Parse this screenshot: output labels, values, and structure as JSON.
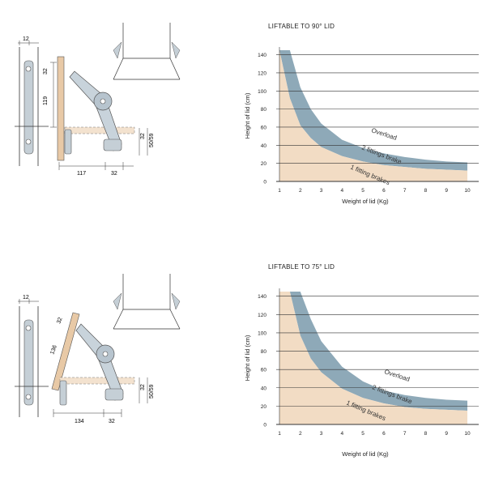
{
  "panels": [
    {
      "title": "LIFTABLE TO 90° LID",
      "dims": {
        "top_width": "12",
        "arm_top": "32",
        "height": "119",
        "bottom_left": "117",
        "bottom_right": "32",
        "right_a": "32",
        "right_b": "50/59"
      }
    },
    {
      "title": "LIFTABLE TO 75° LID",
      "dims": {
        "top_width": "12",
        "arm_top": "32",
        "height": "136",
        "bottom_left": "134",
        "bottom_right": "32",
        "right_a": "32",
        "right_b": "50/59"
      }
    }
  ],
  "colors": {
    "overload": "#8ea9b8",
    "brake": "#f2dcc4",
    "grid": "#333333",
    "hinge": "#a9b8c3"
  },
  "chart_data": [
    {
      "type": "area",
      "xlabel": "Weight of lid (Kg)",
      "ylabel": "Height of lid (cm)",
      "xlim": [
        1,
        10
      ],
      "ylim": [
        0,
        145
      ],
      "x_ticks": [
        1,
        2,
        3,
        4,
        5,
        6,
        7,
        8,
        9,
        10
      ],
      "y_ticks": [
        0,
        20,
        40,
        60,
        80,
        100,
        120,
        140
      ],
      "grid": "horizontal",
      "x": [
        1,
        1.5,
        2,
        2.5,
        3,
        4,
        5,
        6,
        7,
        8,
        9,
        10
      ],
      "series": [
        {
          "name": "1 fitting brakes",
          "values": [
            145,
            92,
            62,
            48,
            38,
            28,
            22,
            18,
            16,
            14,
            13,
            12
          ]
        },
        {
          "name": "2 fittings brake",
          "values": [
            145,
            145,
            104,
            80,
            64,
            46,
            37,
            31,
            27,
            24,
            22,
            21
          ]
        }
      ],
      "annotations": [
        "Overload",
        "2 fittings brake",
        "1 fitting brakes"
      ]
    },
    {
      "type": "area",
      "xlabel": "Weight of lid (Kg)",
      "ylabel": "Height of lid (cm)",
      "xlim": [
        1,
        10
      ],
      "ylim": [
        0,
        145
      ],
      "x_ticks": [
        1,
        2,
        3,
        4,
        5,
        6,
        7,
        8,
        9,
        10
      ],
      "y_ticks": [
        0,
        20,
        40,
        60,
        80,
        100,
        120,
        140
      ],
      "grid": "horizontal",
      "x": [
        1,
        1.5,
        2,
        2.5,
        3,
        4,
        5,
        6,
        7,
        8,
        9,
        10
      ],
      "series": [
        {
          "name": "1 fitting brakes",
          "values": [
            145,
            145,
            97,
            72,
            57,
            39,
            29,
            23,
            19,
            17,
            16,
            15
          ]
        },
        {
          "name": "2 fittings brake",
          "values": [
            145,
            145,
            145,
            115,
            91,
            63,
            47,
            37,
            32,
            29,
            27,
            26
          ]
        }
      ],
      "annotations": [
        "Overload",
        "2 fittings brake",
        "1 fitting brakes"
      ]
    }
  ]
}
